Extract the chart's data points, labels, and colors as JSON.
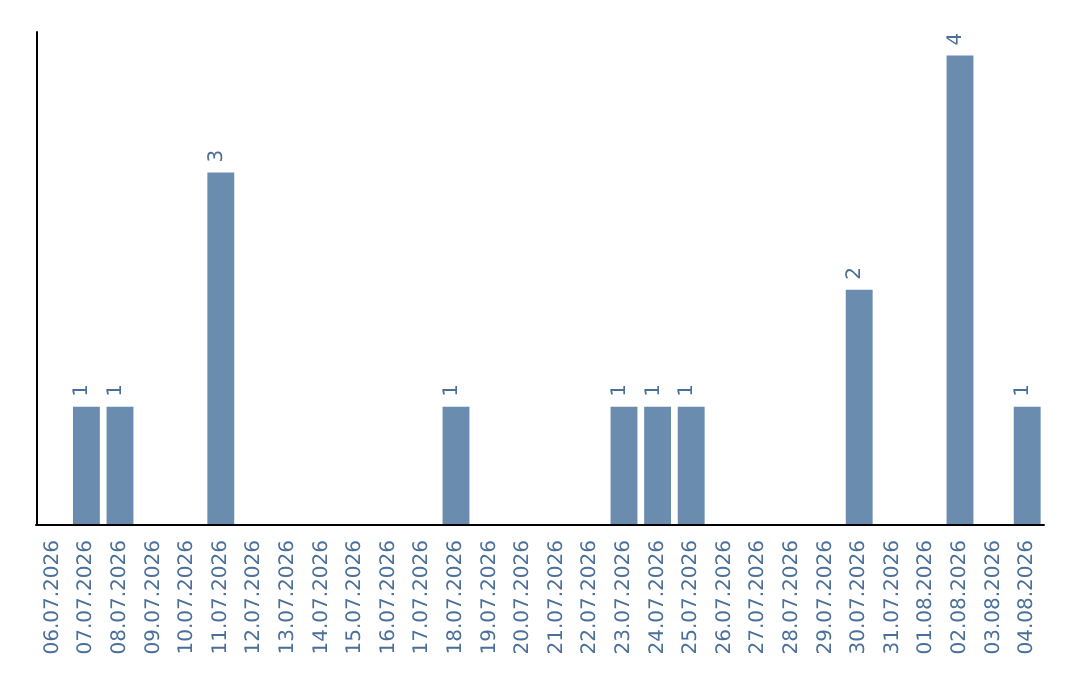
{
  "chart_data": {
    "type": "bar",
    "categories": [
      "06.07.2026",
      "07.07.2026",
      "08.07.2026",
      "09.07.2026",
      "10.07.2026",
      "11.07.2026",
      "12.07.2026",
      "13.07.2026",
      "14.07.2026",
      "15.07.2026",
      "16.07.2026",
      "17.07.2026",
      "18.07.2026",
      "19.07.2026",
      "20.07.2026",
      "21.07.2026",
      "22.07.2026",
      "23.07.2026",
      "24.07.2026",
      "25.07.2026",
      "26.07.2026",
      "27.07.2026",
      "28.07.2026",
      "29.07.2026",
      "30.07.2026",
      "31.07.2026",
      "01.08.2026",
      "02.08.2026",
      "03.08.2026",
      "04.08.2026"
    ],
    "values": [
      0,
      1,
      1,
      0,
      0,
      3,
      0,
      0,
      0,
      0,
      0,
      0,
      1,
      0,
      0,
      0,
      0,
      1,
      1,
      1,
      0,
      0,
      0,
      0,
      2,
      0,
      0,
      4,
      0,
      1
    ],
    "value_labels": [
      null,
      "1",
      "1",
      null,
      null,
      "3",
      null,
      null,
      null,
      null,
      null,
      null,
      "1",
      null,
      null,
      null,
      null,
      "1",
      "1",
      "1",
      null,
      null,
      null,
      null,
      "2",
      null,
      null,
      "4",
      null,
      "1"
    ],
    "color": "#6a8caf",
    "grid": false
  }
}
